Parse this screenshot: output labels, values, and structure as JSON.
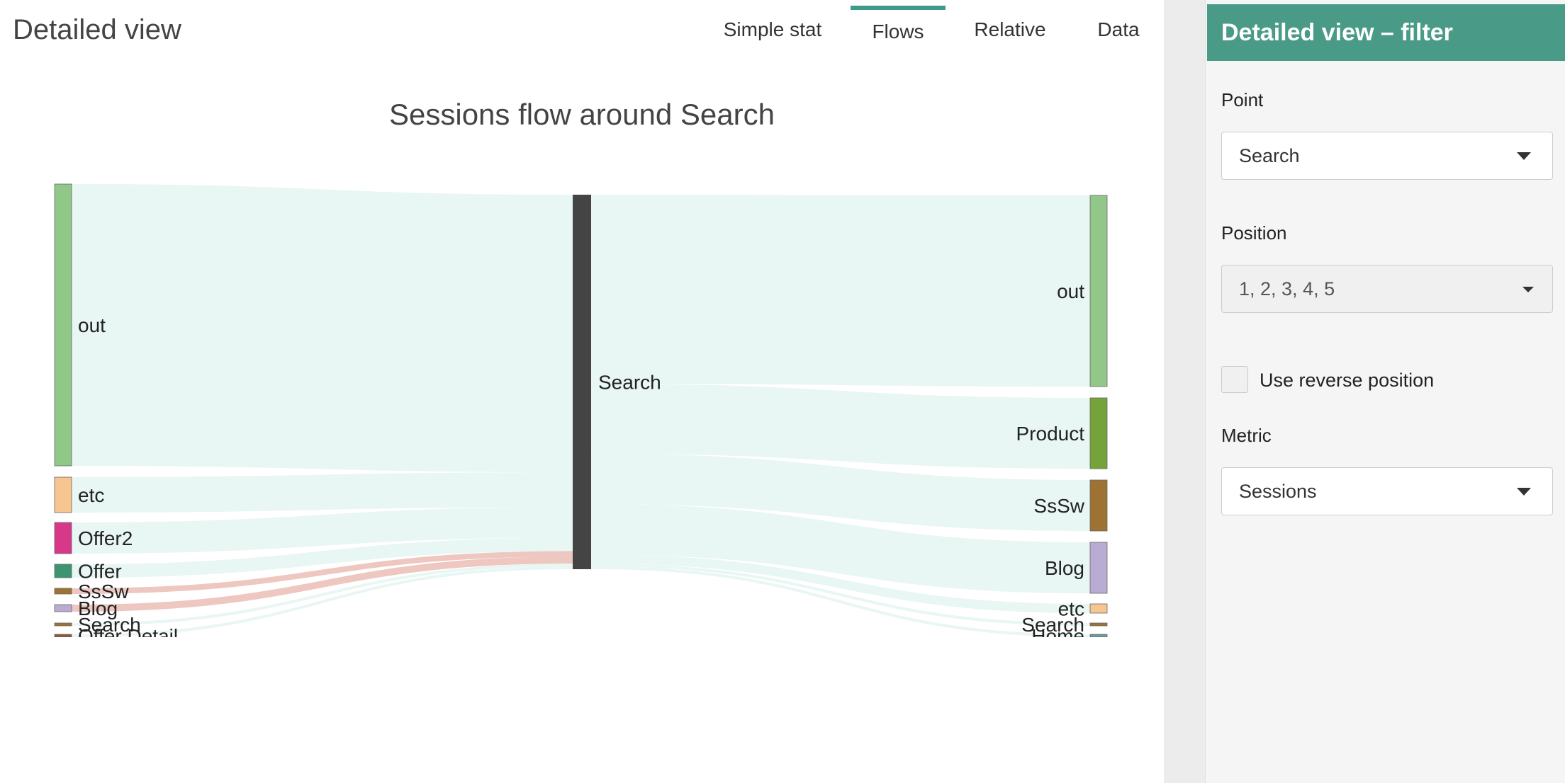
{
  "header": {
    "title": "Detailed view"
  },
  "tabs": [
    {
      "label": "Simple stat",
      "active": false
    },
    {
      "label": "Flows",
      "active": true
    },
    {
      "label": "Relative",
      "active": false
    },
    {
      "label": "Data",
      "active": false
    }
  ],
  "chart": {
    "title": "Sessions flow around Search"
  },
  "chart_data": {
    "type": "sankey",
    "title": "Sessions flow around Search",
    "center_node": "Search",
    "incoming": [
      {
        "source": "out",
        "color": "#91c88a"
      },
      {
        "source": "etc",
        "color": "#f6c590"
      },
      {
        "source": "Offer2",
        "color": "#d7388a"
      },
      {
        "source": "Offer",
        "color": "#3d9470"
      },
      {
        "source": "SsSw",
        "color": "#9e7232"
      },
      {
        "source": "Blog",
        "color": "#b9acd2"
      },
      {
        "source": "Search",
        "color": "#9e7232"
      },
      {
        "source": "Offer Detail",
        "color": "#8a5a3a"
      }
    ],
    "outgoing": [
      {
        "target": "out",
        "color": "#91c88a"
      },
      {
        "target": "Product",
        "color": "#76a23a"
      },
      {
        "target": "SsSw",
        "color": "#9e7232"
      },
      {
        "target": "Blog",
        "color": "#b9acd2"
      },
      {
        "target": "etc",
        "color": "#f6c590"
      },
      {
        "target": "Search",
        "color": "#9e7232"
      },
      {
        "target": "Home",
        "color": "#6a9a9a"
      }
    ],
    "center_color": "#444444",
    "link_color": "#e8f6f4",
    "highlight_link_color": "#eec7c0"
  },
  "sidebar": {
    "title": "Detailed view – filter",
    "point": {
      "label": "Point",
      "value": "Search"
    },
    "position": {
      "label": "Position",
      "value": "1, 2, 3, 4, 5"
    },
    "reverse": {
      "label": "Use reverse position",
      "checked": false
    },
    "metric": {
      "label": "Metric",
      "value": "Sessions"
    }
  }
}
